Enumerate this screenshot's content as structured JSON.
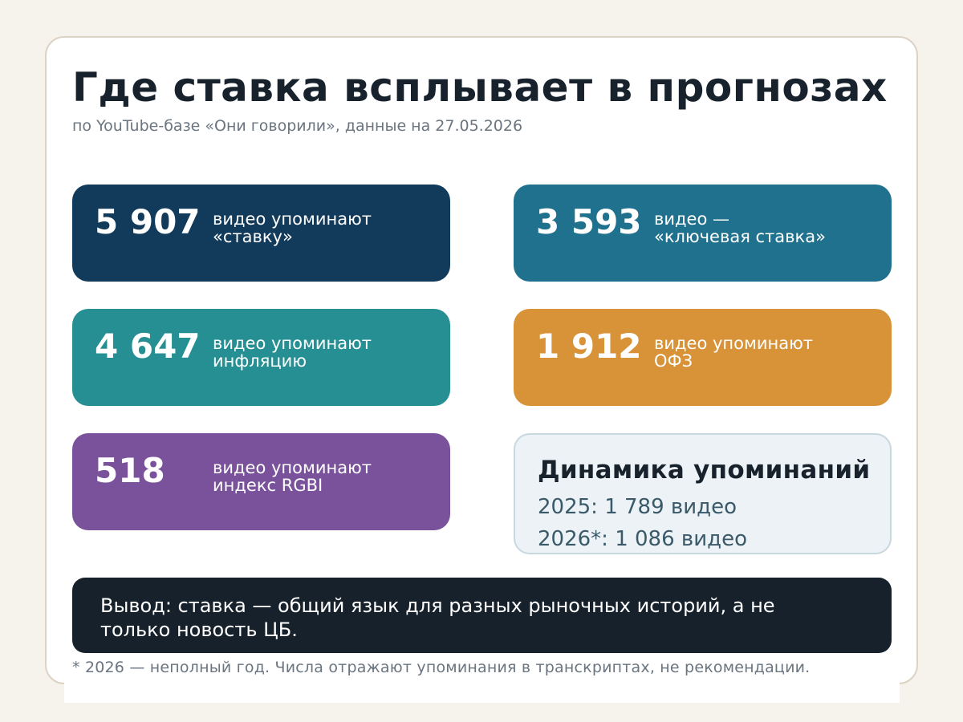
{
  "header": {
    "title": "Где ставка всплывает в прогнозах",
    "subtitle": "по YouTube-базе «Они говорили», данные на 27.05.2026"
  },
  "stats": [
    {
      "value": "5 907",
      "line1": "видео упоминают",
      "line2": "«ставку»",
      "color": "#123a5b"
    },
    {
      "value": "3 593",
      "line1": "видео —",
      "line2": "«ключевая ставка»",
      "color": "#20718e"
    },
    {
      "value": "4 647",
      "line1": "видео упоминают",
      "line2": "инфляцию",
      "color": "#268f93"
    },
    {
      "value": "1 912",
      "line1": "видео упоминают",
      "line2": "ОФЗ",
      "color": "#d89338"
    },
    {
      "value": "518",
      "line1": "видео упоминают",
      "line2": "индекс RGBI",
      "color": "#7a529b"
    }
  ],
  "dynamics": {
    "title": "Динамика упоминаний",
    "line1": "2025: 1 789 видео",
    "line2": "2026*: 1 086 видео"
  },
  "conclusion": "Вывод: ставка — общий язык для разных рыночных историй, а не только новость ЦБ.",
  "footnote": "* 2026 — неполный год. Числа отражают упоминания в транскриптах, не рекомендации."
}
